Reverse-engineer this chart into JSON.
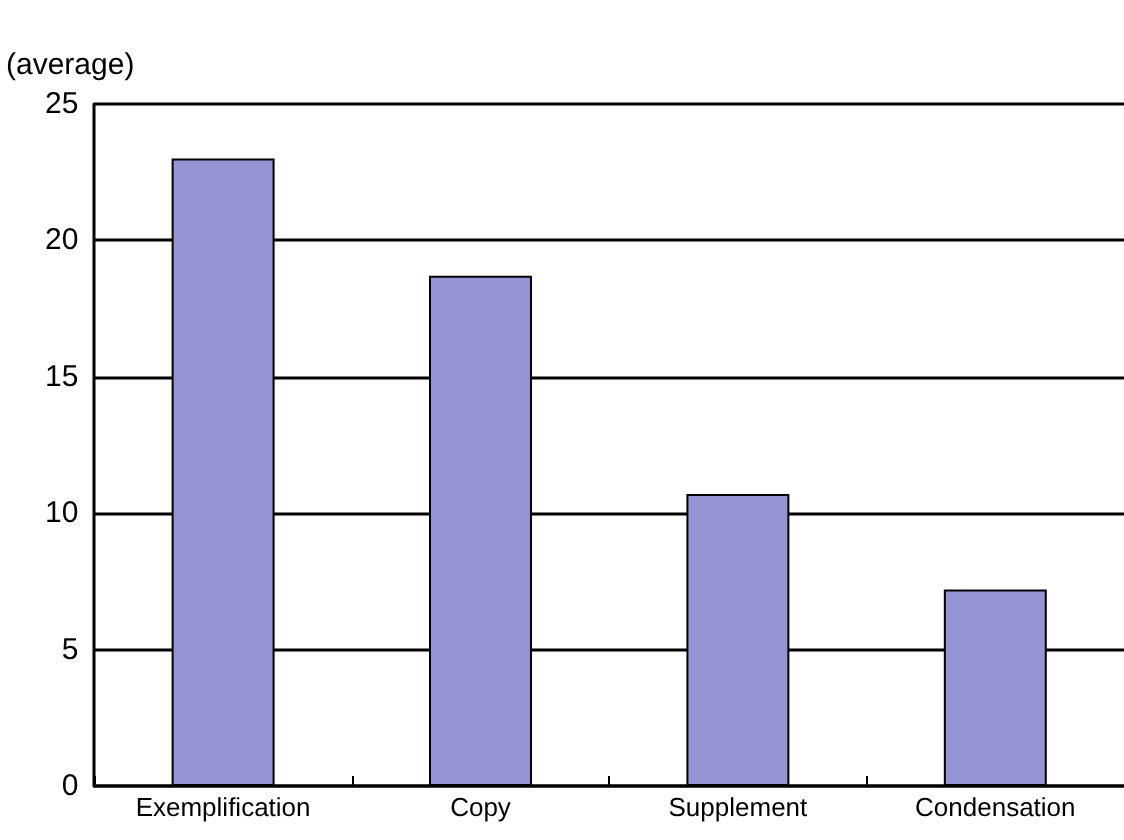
{
  "chart_data": {
    "type": "bar",
    "ylabel": "(average)",
    "categories": [
      "Exemplification",
      "Copy",
      "Supplement",
      "Condensation"
    ],
    "values": [
      23.0,
      18.7,
      10.7,
      7.2
    ],
    "color": "#9595d6",
    "ylim": [
      0,
      25
    ],
    "yticks": [
      0,
      5,
      10,
      15,
      20,
      25
    ],
    "grid": "y"
  }
}
